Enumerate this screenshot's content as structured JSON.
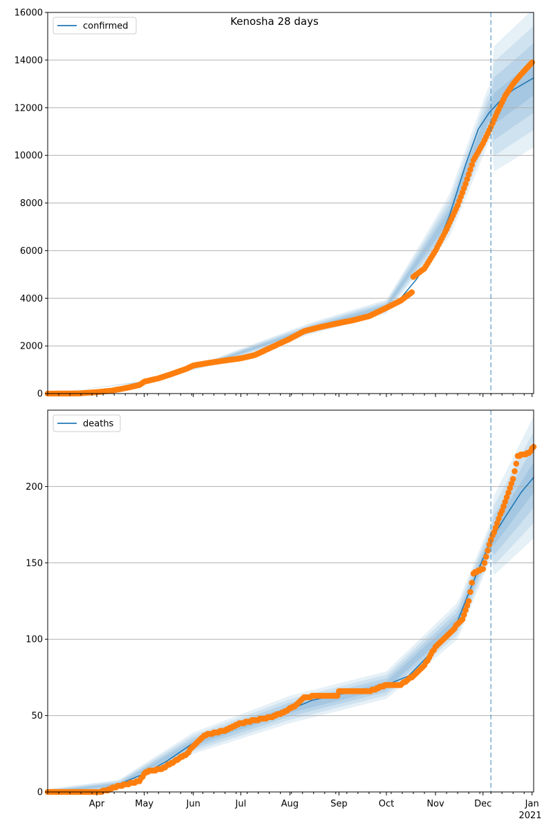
{
  "figure": {
    "title": "Kenosha 28 days"
  },
  "colors": {
    "model_line": "#1f77b4",
    "observed_points": "#ff7f0e",
    "band": "#1f77b4",
    "grid": "#b0b0b0",
    "forecast_line": "#1f77b4"
  },
  "x_axis": {
    "month_ticks": [
      {
        "date": "2020-04-01",
        "label": "Apr"
      },
      {
        "date": "2020-05-01",
        "label": "May"
      },
      {
        "date": "2020-06-01",
        "label": "Jun"
      },
      {
        "date": "2020-07-01",
        "label": "Jul"
      },
      {
        "date": "2020-08-01",
        "label": "Aug"
      },
      {
        "date": "2020-09-01",
        "label": "Sep"
      },
      {
        "date": "2020-10-01",
        "label": "Oct"
      },
      {
        "date": "2020-11-01",
        "label": "Nov"
      },
      {
        "date": "2020-12-01",
        "label": "Dec"
      },
      {
        "date": "2021-01-01",
        "label": "Jan"
      }
    ],
    "year_label": "2021",
    "range": [
      "2020-03-01",
      "2021-01-02"
    ],
    "forecast_start": "2020-12-06"
  },
  "chart_data": [
    {
      "type": "line",
      "legend": "confirmed",
      "legend_position": "upper-left",
      "grid": "horizontal",
      "ylim": [
        0,
        16000
      ],
      "yticks": [
        0,
        2000,
        4000,
        6000,
        8000,
        10000,
        12000,
        14000,
        16000
      ],
      "ytick_labels": [
        "0",
        "2000",
        "4000",
        "6000",
        "8000",
        "10000",
        "12000",
        "14000",
        "16000"
      ],
      "model": [
        [
          "2020-03-01",
          0
        ],
        [
          "2020-03-15",
          5
        ],
        [
          "2020-03-25",
          30
        ],
        [
          "2020-04-05",
          100
        ],
        [
          "2020-04-15",
          200
        ],
        [
          "2020-04-25",
          330
        ],
        [
          "2020-05-01",
          500
        ],
        [
          "2020-05-10",
          680
        ],
        [
          "2020-05-20",
          880
        ],
        [
          "2020-06-01",
          1150
        ],
        [
          "2020-06-10",
          1300
        ],
        [
          "2020-06-20",
          1420
        ],
        [
          "2020-07-01",
          1550
        ],
        [
          "2020-07-10",
          1700
        ],
        [
          "2020-07-20",
          1950
        ],
        [
          "2020-08-01",
          2350
        ],
        [
          "2020-08-10",
          2650
        ],
        [
          "2020-08-20",
          2820
        ],
        [
          "2020-09-01",
          2980
        ],
        [
          "2020-09-10",
          3100
        ],
        [
          "2020-09-20",
          3280
        ],
        [
          "2020-10-01",
          3650
        ],
        [
          "2020-10-10",
          4000
        ],
        [
          "2020-10-20",
          4800
        ],
        [
          "2020-11-01",
          6000
        ],
        [
          "2020-11-10",
          7500
        ],
        [
          "2020-11-20",
          9600
        ],
        [
          "2020-11-28",
          11100
        ],
        [
          "2020-12-05",
          11800
        ],
        [
          "2020-12-12",
          12300
        ],
        [
          "2020-12-20",
          12750
        ],
        [
          "2021-01-02",
          13250
        ]
      ],
      "band_anchors": [
        [
          "2020-03-01",
          0,
          0,
          0
        ],
        [
          "2020-05-01",
          500,
          0.06,
          0.12
        ],
        [
          "2020-06-15",
          1350,
          0.1,
          0.2
        ],
        [
          "2020-08-15",
          2750,
          0.09,
          0.17
        ],
        [
          "2020-10-01",
          3650,
          0.08,
          0.15
        ],
        [
          "2020-11-10",
          7500,
          0.12,
          0.22
        ],
        [
          "2020-12-05",
          11800,
          0.1,
          0.22
        ],
        [
          "2021-01-02",
          13250,
          0.08,
          0.22
        ]
      ],
      "observed": [
        [
          "2020-03-01",
          0
        ],
        [
          "2020-03-20",
          5
        ],
        [
          "2020-04-01",
          60
        ],
        [
          "2020-04-10",
          120
        ],
        [
          "2020-04-20",
          240
        ],
        [
          "2020-04-28",
          360
        ],
        [
          "2020-05-01",
          500
        ],
        [
          "2020-05-10",
          640
        ],
        [
          "2020-05-20",
          860
        ],
        [
          "2020-05-28",
          1050
        ],
        [
          "2020-06-01",
          1180
        ],
        [
          "2020-06-10",
          1280
        ],
        [
          "2020-06-20",
          1380
        ],
        [
          "2020-07-01",
          1480
        ],
        [
          "2020-07-10",
          1620
        ],
        [
          "2020-07-20",
          1930
        ],
        [
          "2020-08-01",
          2300
        ],
        [
          "2020-08-10",
          2620
        ],
        [
          "2020-08-20",
          2790
        ],
        [
          "2020-09-01",
          2960
        ],
        [
          "2020-09-10",
          3080
        ],
        [
          "2020-09-20",
          3250
        ],
        [
          "2020-10-01",
          3600
        ],
        [
          "2020-10-10",
          3900
        ],
        [
          "2020-10-17",
          4250
        ],
        [
          "2020-10-18",
          4900
        ],
        [
          "2020-10-25",
          5250
        ],
        [
          "2020-11-01",
          6000
        ],
        [
          "2020-11-08",
          6900
        ],
        [
          "2020-11-15",
          7900
        ],
        [
          "2020-11-20",
          8800
        ],
        [
          "2020-11-25",
          9800
        ],
        [
          "2020-12-01",
          10500
        ],
        [
          "2020-12-06",
          11200
        ],
        [
          "2020-12-10",
          11800
        ],
        [
          "2020-12-15",
          12500
        ],
        [
          "2020-12-20",
          13000
        ],
        [
          "2020-12-25",
          13400
        ],
        [
          "2021-01-01",
          13900
        ]
      ]
    },
    {
      "type": "line",
      "legend": "deaths",
      "legend_position": "upper-left",
      "grid": "horizontal",
      "ylim": [
        0,
        250
      ],
      "yticks": [
        0,
        50,
        100,
        150,
        200
      ],
      "ytick_labels": [
        "0",
        "50",
        "100",
        "150",
        "200"
      ],
      "model": [
        [
          "2020-03-01",
          0
        ],
        [
          "2020-04-01",
          1
        ],
        [
          "2020-04-15",
          5
        ],
        [
          "2020-05-01",
          12
        ],
        [
          "2020-05-15",
          20
        ],
        [
          "2020-06-01",
          32
        ],
        [
          "2020-06-15",
          39
        ],
        [
          "2020-07-01",
          45
        ],
        [
          "2020-07-15",
          49
        ],
        [
          "2020-08-01",
          54
        ],
        [
          "2020-08-15",
          60
        ],
        [
          "2020-09-01",
          64
        ],
        [
          "2020-09-15",
          66
        ],
        [
          "2020-10-01",
          70
        ],
        [
          "2020-10-15",
          76
        ],
        [
          "2020-11-01",
          94
        ],
        [
          "2020-11-15",
          112
        ],
        [
          "2020-11-25",
          138
        ],
        [
          "2020-12-06",
          165
        ],
        [
          "2020-12-15",
          180
        ],
        [
          "2020-12-25",
          196
        ],
        [
          "2021-01-02",
          206
        ]
      ],
      "band_anchors": [
        [
          "2020-03-01",
          0,
          2,
          4
        ],
        [
          "2020-04-15",
          5,
          3,
          6
        ],
        [
          "2020-06-01",
          32,
          7,
          14
        ],
        [
          "2020-08-01",
          54,
          9,
          17
        ],
        [
          "2020-10-01",
          70,
          9,
          18
        ],
        [
          "2020-11-15",
          112,
          12,
          22
        ],
        [
          "2020-12-06",
          165,
          12,
          25
        ],
        [
          "2021-01-02",
          206,
          12,
          40
        ]
      ],
      "observed": [
        [
          "2020-03-01",
          0
        ],
        [
          "2020-04-01",
          0
        ],
        [
          "2020-04-08",
          1
        ],
        [
          "2020-04-12",
          3
        ],
        [
          "2020-04-20",
          5
        ],
        [
          "2020-04-28",
          7
        ],
        [
          "2020-05-01",
          12
        ],
        [
          "2020-05-05",
          14
        ],
        [
          "2020-05-12",
          15
        ],
        [
          "2020-05-20",
          20
        ],
        [
          "2020-05-28",
          25
        ],
        [
          "2020-06-01",
          30
        ],
        [
          "2020-06-08",
          37
        ],
        [
          "2020-06-20",
          40
        ],
        [
          "2020-07-01",
          45
        ],
        [
          "2020-07-10",
          47
        ],
        [
          "2020-07-20",
          49
        ],
        [
          "2020-07-28",
          52
        ],
        [
          "2020-08-05",
          57
        ],
        [
          "2020-08-10",
          62
        ],
        [
          "2020-08-20",
          63
        ],
        [
          "2020-08-31",
          63
        ],
        [
          "2020-09-01",
          66
        ],
        [
          "2020-09-20",
          66
        ],
        [
          "2020-10-01",
          70
        ],
        [
          "2020-10-10",
          70
        ],
        [
          "2020-10-18",
          76
        ],
        [
          "2020-10-25",
          83
        ],
        [
          "2020-11-01",
          95
        ],
        [
          "2020-11-10",
          104
        ],
        [
          "2020-11-18",
          113
        ],
        [
          "2020-11-22",
          125
        ],
        [
          "2020-11-25",
          143
        ],
        [
          "2020-12-01",
          146
        ],
        [
          "2020-12-05",
          162
        ],
        [
          "2020-12-10",
          176
        ],
        [
          "2020-12-15",
          190
        ],
        [
          "2020-12-20",
          205
        ],
        [
          "2020-12-23",
          220
        ],
        [
          "2020-12-30",
          222
        ],
        [
          "2021-01-02",
          226
        ]
      ]
    }
  ]
}
